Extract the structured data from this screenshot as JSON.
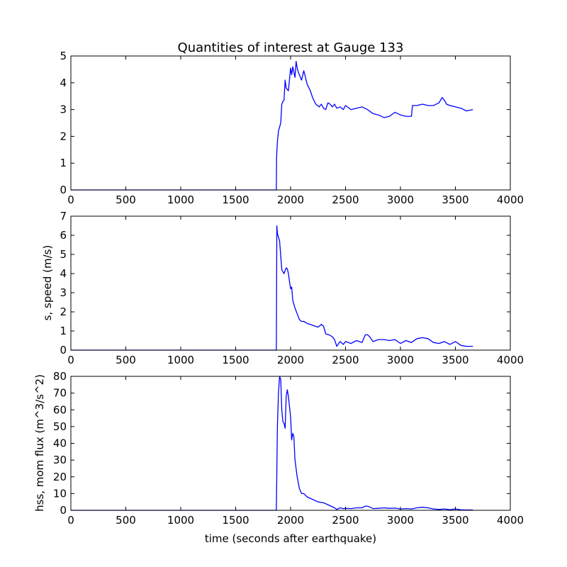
{
  "figure_title": "Quantities of interest at Gauge 133",
  "xlabel": "time (seconds after earthquake)",
  "chart_data": [
    {
      "type": "line",
      "title": "Quantities of interest at Gauge 133",
      "xlabel": "",
      "ylabel": "",
      "xlim": [
        0,
        4000
      ],
      "ylim": [
        0,
        5
      ],
      "xticks": [
        "0",
        "500",
        "1000",
        "1500",
        "2000",
        "2500",
        "3000",
        "3500",
        "4000"
      ],
      "yticks": [
        "0",
        "1",
        "2",
        "3",
        "4",
        "5"
      ],
      "grid": false,
      "series": [
        {
          "color": "#0000ff",
          "x": [
            0,
            1870,
            1872,
            1880,
            1890,
            1900,
            1910,
            1920,
            1930,
            1940,
            1950,
            1960,
            1980,
            2000,
            2010,
            2020,
            2040,
            2050,
            2060,
            2070,
            2080,
            2100,
            2120,
            2130,
            2150,
            2180,
            2200,
            2230,
            2260,
            2280,
            2300,
            2320,
            2340,
            2360,
            2380,
            2400,
            2420,
            2450,
            2480,
            2500,
            2550,
            2600,
            2650,
            2700,
            2750,
            2800,
            2850,
            2900,
            2950,
            3000,
            3050,
            3100,
            3110,
            3150,
            3200,
            3250,
            3300,
            3350,
            3380,
            3400,
            3420,
            3450,
            3500,
            3550,
            3600,
            3660
          ],
          "y": [
            0,
            0,
            1.2,
            1.8,
            2.2,
            2.35,
            2.5,
            3.2,
            3.3,
            3.35,
            4.1,
            3.8,
            3.7,
            4.55,
            4.3,
            4.6,
            4.2,
            4.8,
            4.55,
            4.4,
            4.3,
            4.1,
            4.45,
            4.3,
            3.95,
            3.7,
            3.45,
            3.2,
            3.1,
            3.2,
            3.05,
            3.0,
            3.25,
            3.2,
            3.1,
            3.2,
            3.05,
            3.1,
            3.0,
            3.15,
            3.0,
            3.05,
            3.1,
            3.0,
            2.85,
            2.8,
            2.7,
            2.75,
            2.9,
            2.8,
            2.75,
            2.75,
            3.15,
            3.15,
            3.2,
            3.15,
            3.15,
            3.25,
            3.45,
            3.35,
            3.2,
            3.15,
            3.1,
            3.05,
            2.95,
            3.0
          ]
        }
      ]
    },
    {
      "type": "line",
      "ylabel": "s, speed (m/s)",
      "xlim": [
        0,
        4000
      ],
      "ylim": [
        0,
        7
      ],
      "xticks": [
        "0",
        "500",
        "1000",
        "1500",
        "2000",
        "2500",
        "3000",
        "3500",
        "4000"
      ],
      "yticks": [
        "0",
        "1",
        "2",
        "3",
        "4",
        "5",
        "6",
        "7"
      ],
      "grid": false,
      "series": [
        {
          "color": "#0000ff",
          "x": [
            0,
            1870,
            1875,
            1880,
            1890,
            1900,
            1920,
            1940,
            1960,
            1970,
            1980,
            2000,
            2010,
            2020,
            2040,
            2060,
            2080,
            2100,
            2120,
            2150,
            2200,
            2250,
            2280,
            2300,
            2320,
            2350,
            2380,
            2400,
            2420,
            2450,
            2480,
            2500,
            2550,
            2600,
            2650,
            2680,
            2700,
            2720,
            2750,
            2800,
            2850,
            2900,
            2950,
            3000,
            3050,
            3100,
            3150,
            3200,
            3250,
            3300,
            3350,
            3400,
            3450,
            3500,
            3550,
            3600,
            3660
          ],
          "y": [
            0,
            0,
            6.5,
            6.1,
            5.9,
            5.7,
            4.2,
            4.0,
            4.3,
            4.25,
            4.0,
            3.2,
            3.3,
            2.6,
            2.2,
            1.9,
            1.6,
            1.5,
            1.5,
            1.4,
            1.3,
            1.2,
            1.35,
            1.25,
            0.85,
            0.8,
            0.7,
            0.55,
            0.2,
            0.45,
            0.3,
            0.45,
            0.35,
            0.5,
            0.4,
            0.8,
            0.8,
            0.7,
            0.45,
            0.55,
            0.55,
            0.5,
            0.55,
            0.35,
            0.5,
            0.4,
            0.6,
            0.65,
            0.6,
            0.4,
            0.35,
            0.45,
            0.3,
            0.45,
            0.25,
            0.2,
            0.2
          ]
        }
      ]
    },
    {
      "type": "line",
      "ylabel": "hss, mom flux (m^3/s^2)",
      "xlim": [
        0,
        4000
      ],
      "ylim": [
        0,
        80
      ],
      "xticks": [
        "0",
        "500",
        "1000",
        "1500",
        "2000",
        "2500",
        "3000",
        "3500",
        "4000"
      ],
      "yticks": [
        "0",
        "10",
        "20",
        "30",
        "40",
        "50",
        "60",
        "70",
        "80"
      ],
      "grid": false,
      "series": [
        {
          "color": "#0000ff",
          "x": [
            0,
            1870,
            1880,
            1890,
            1900,
            1910,
            1920,
            1930,
            1940,
            1950,
            1960,
            1970,
            1980,
            2000,
            2010,
            2020,
            2030,
            2040,
            2060,
            2080,
            2100,
            2120,
            2150,
            2200,
            2250,
            2300,
            2350,
            2400,
            2420,
            2450,
            2480,
            2500,
            2550,
            2600,
            2650,
            2680,
            2700,
            2720,
            2750,
            2800,
            2850,
            2900,
            2950,
            3000,
            3050,
            3100,
            3150,
            3200,
            3250,
            3300,
            3350,
            3400,
            3450,
            3500,
            3550,
            3600,
            3660
          ],
          "y": [
            0,
            0,
            50,
            70,
            80,
            78,
            60,
            53,
            52,
            49,
            68,
            72,
            68,
            56,
            42,
            46,
            44,
            30,
            20,
            13,
            10,
            10,
            8,
            6.5,
            5,
            4.5,
            3,
            1.5,
            0.5,
            1.5,
            1,
            1.2,
            1,
            1.5,
            1.5,
            2.5,
            2.5,
            2,
            1,
            1.2,
            1.5,
            1.2,
            1.3,
            0.8,
            1,
            0.8,
            1.5,
            1.8,
            1.5,
            0.8,
            0.5,
            0.8,
            0.4,
            0.8,
            0.3,
            0.2,
            0.2
          ]
        }
      ]
    }
  ]
}
